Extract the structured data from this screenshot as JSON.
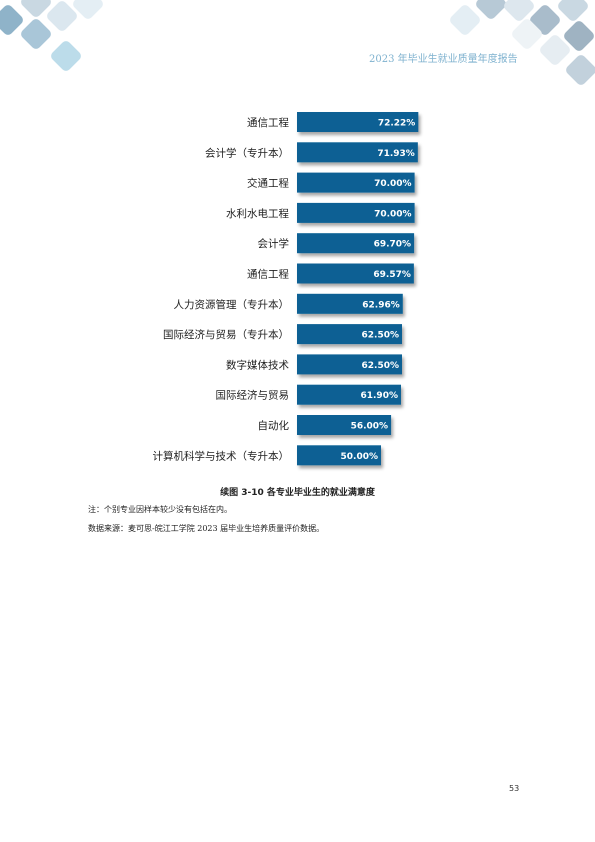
{
  "header": {
    "title": "2023 年毕业生就业质量年度报告"
  },
  "chart_data": {
    "type": "bar",
    "orientation": "horizontal",
    "categories": [
      "通信工程",
      "会计学（专升本）",
      "交通工程",
      "水利水电工程",
      "会计学",
      "通信工程",
      "人力资源管理（专升本）",
      "国际经济与贸易（专升本）",
      "数字媒体技术",
      "国际经济与贸易",
      "自动化",
      "计算机科学与技术（专升本）"
    ],
    "values": [
      72.22,
      71.93,
      70.0,
      70.0,
      69.7,
      69.57,
      62.96,
      62.5,
      62.5,
      61.9,
      56.0,
      50.0
    ],
    "value_labels": [
      "72.22%",
      "71.93%",
      "70.00%",
      "70.00%",
      "69.70%",
      "69.57%",
      "62.96%",
      "62.50%",
      "62.50%",
      "61.90%",
      "56.00%",
      "50.00%"
    ],
    "title": "续图 3-10 各专业毕业生的就业满意度",
    "xlim": [
      0,
      100
    ],
    "grid": false,
    "legend": "none",
    "bar_color": "#0b6194"
  },
  "notes": {
    "note": "注：个别专业因样本较少没有包括在内。",
    "source": "数据来源：麦可思-皖江工学院 2023 届毕业生培养质量评价数据。"
  },
  "page_number": "53",
  "colors": {
    "accent": "#0b6194",
    "header_text": "#7fb2cf"
  }
}
